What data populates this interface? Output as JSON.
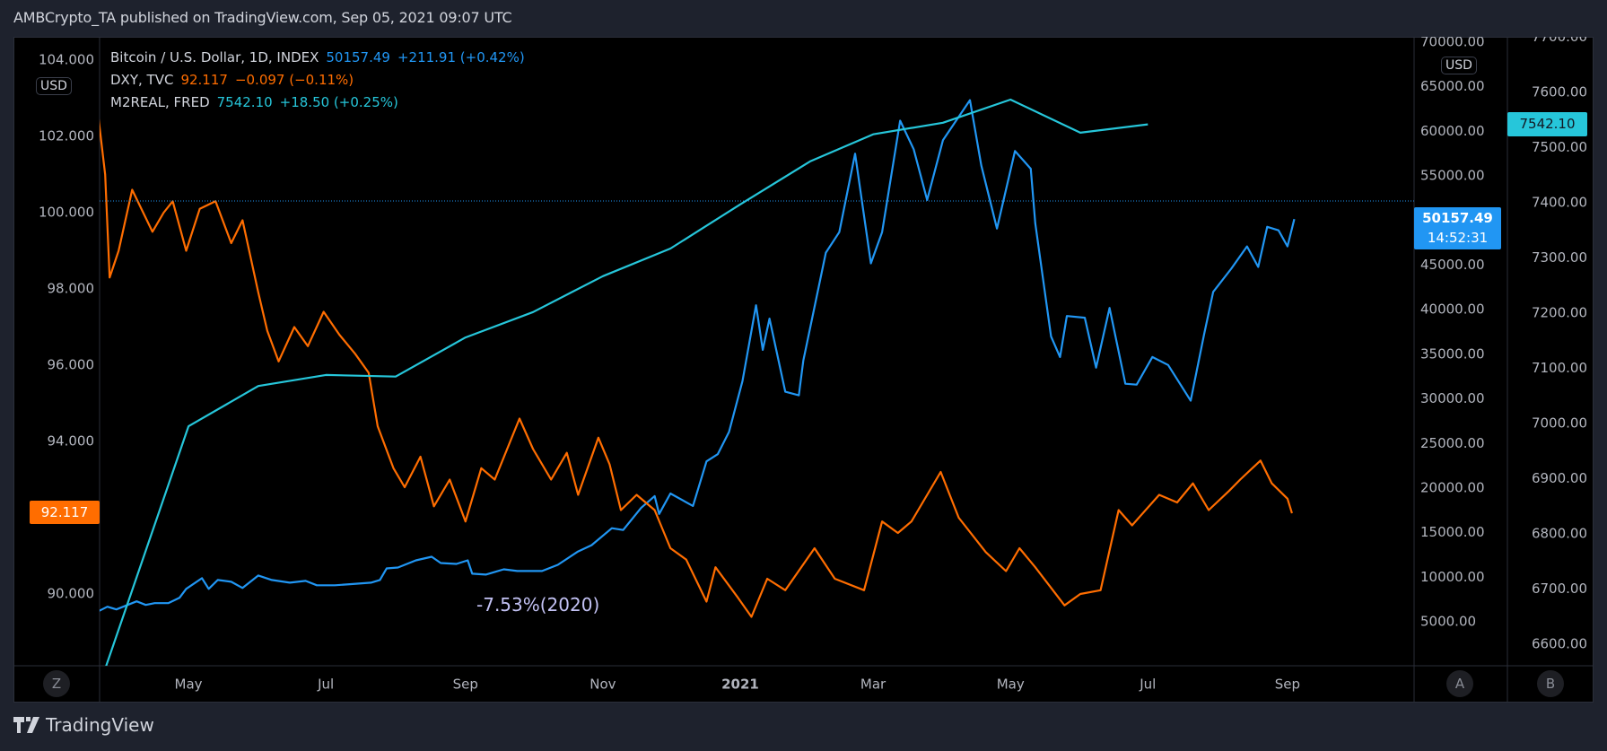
{
  "header": {
    "title": "AMBCrypto_TA published on TradingView.com, Sep 05, 2021 09:07 UTC"
  },
  "legend": [
    {
      "label": "Bitcoin / U.S. Dollar, 1D, INDEX",
      "value": "50157.49",
      "change": "+211.91 (+0.42%)",
      "color": "#2196f3"
    },
    {
      "label": "DXY, TVC",
      "value": "92.117",
      "change": "−0.097 (−0.11%)",
      "color": "#ff6d00"
    },
    {
      "label": "M2REAL, FRED",
      "value": "7542.10",
      "change": "+18.50 (+0.25%)",
      "color": "#26c6da"
    }
  ],
  "badges": {
    "left_currency": "USD",
    "right_currency": "USD",
    "z": "Z",
    "a": "A",
    "b": "B"
  },
  "price_labels": {
    "dxy": "92.117",
    "btc": "50157.49",
    "btc_countdown": "14:52:31",
    "m2": "7542.10"
  },
  "annotation": "-7.53%(2020)",
  "footer": {
    "logo_text": "TradingView"
  },
  "chart_data": {
    "type": "line",
    "title": "",
    "x_ticks": [
      {
        "label": "May",
        "date": "2020-05-01"
      },
      {
        "label": "Jul",
        "date": "2020-07-01"
      },
      {
        "label": "Sep",
        "date": "2020-09-01"
      },
      {
        "label": "Nov",
        "date": "2020-11-01"
      },
      {
        "label": "2021",
        "date": "2021-01-01",
        "bold": true
      },
      {
        "label": "Mar",
        "date": "2021-03-01"
      },
      {
        "label": "May",
        "date": "2021-05-01"
      },
      {
        "label": "Jul",
        "date": "2021-07-01"
      },
      {
        "label": "Sep",
        "date": "2021-09-01"
      }
    ],
    "axes": {
      "left": {
        "series": "DXY",
        "range": [
          87.9,
          104.2
        ],
        "ticks": [
          "104.000",
          "102.000",
          "100.000",
          "98.000",
          "96.000",
          "94.000",
          "90.000"
        ]
      },
      "right_a": {
        "series": "BTC",
        "range": [
          0,
          70000
        ],
        "ticks": [
          "70000.00",
          "65000.00",
          "60000.00",
          "55000.00",
          "45000.00",
          "40000.00",
          "35000.00",
          "30000.00",
          "25000.00",
          "20000.00",
          "15000.00",
          "10000.00",
          "5000.00"
        ]
      },
      "right_b": {
        "series": "M2REAL",
        "range": [
          6560,
          7700
        ],
        "ticks": [
          "7700.00",
          "7600.00",
          "7500.00",
          "7400.00",
          "7300.00",
          "7200.00",
          "7100.00",
          "7000.00",
          "6900.00",
          "6800.00",
          "6700.00",
          "6600.00"
        ]
      }
    },
    "grid": false,
    "series": [
      {
        "name": "Bitcoin / U.S. Dollar",
        "axis": "right_a",
        "color": "#2196f3",
        "points": [
          [
            "2020-03-22",
            6200
          ],
          [
            "2020-03-26",
            6700
          ],
          [
            "2020-03-30",
            6400
          ],
          [
            "2020-04-03",
            6800
          ],
          [
            "2020-04-08",
            7300
          ],
          [
            "2020-04-12",
            6900
          ],
          [
            "2020-04-16",
            7100
          ],
          [
            "2020-04-22",
            7100
          ],
          [
            "2020-04-27",
            7700
          ],
          [
            "2020-04-30",
            8700
          ],
          [
            "2020-05-07",
            9900
          ],
          [
            "2020-05-10",
            8700
          ],
          [
            "2020-05-14",
            9700
          ],
          [
            "2020-05-20",
            9500
          ],
          [
            "2020-05-25",
            8800
          ],
          [
            "2020-06-01",
            10200
          ],
          [
            "2020-06-07",
            9700
          ],
          [
            "2020-06-15",
            9400
          ],
          [
            "2020-06-22",
            9600
          ],
          [
            "2020-06-27",
            9100
          ],
          [
            "2020-07-05",
            9100
          ],
          [
            "2020-07-13",
            9250
          ],
          [
            "2020-07-21",
            9400
          ],
          [
            "2020-07-25",
            9700
          ],
          [
            "2020-07-28",
            11000
          ],
          [
            "2020-08-02",
            11100
          ],
          [
            "2020-08-10",
            11900
          ],
          [
            "2020-08-17",
            12300
          ],
          [
            "2020-08-21",
            11600
          ],
          [
            "2020-08-28",
            11500
          ],
          [
            "2020-09-02",
            11900
          ],
          [
            "2020-09-04",
            10400
          ],
          [
            "2020-09-10",
            10300
          ],
          [
            "2020-09-18",
            10900
          ],
          [
            "2020-09-24",
            10700
          ],
          [
            "2020-10-05",
            10700
          ],
          [
            "2020-10-12",
            11400
          ],
          [
            "2020-10-21",
            12900
          ],
          [
            "2020-10-27",
            13600
          ],
          [
            "2020-11-05",
            15500
          ],
          [
            "2020-11-10",
            15300
          ],
          [
            "2020-11-18",
            17800
          ],
          [
            "2020-11-24",
            19100
          ],
          [
            "2020-11-26",
            17100
          ],
          [
            "2020-12-01",
            19400
          ],
          [
            "2020-12-11",
            18000
          ],
          [
            "2020-12-17",
            23000
          ],
          [
            "2020-12-22",
            23800
          ],
          [
            "2020-12-27",
            26300
          ],
          [
            "2021-01-02",
            32000
          ],
          [
            "2021-01-08",
            40500
          ],
          [
            "2021-01-11",
            35500
          ],
          [
            "2021-01-14",
            39000
          ],
          [
            "2021-01-21",
            30800
          ],
          [
            "2021-01-27",
            30400
          ],
          [
            "2021-01-29",
            34300
          ],
          [
            "2021-02-08",
            46400
          ],
          [
            "2021-02-14",
            48700
          ],
          [
            "2021-02-21",
            57500
          ],
          [
            "2021-02-28",
            45200
          ],
          [
            "2021-03-05",
            48700
          ],
          [
            "2021-03-13",
            61200
          ],
          [
            "2021-03-19",
            58000
          ],
          [
            "2021-03-25",
            52300
          ],
          [
            "2021-04-01",
            59000
          ],
          [
            "2021-04-13",
            63500
          ],
          [
            "2021-04-18",
            56200
          ],
          [
            "2021-04-25",
            49100
          ],
          [
            "2021-05-03",
            57800
          ],
          [
            "2021-05-10",
            55800
          ],
          [
            "2021-05-12",
            49700
          ],
          [
            "2021-05-19",
            37000
          ],
          [
            "2021-05-23",
            34700
          ],
          [
            "2021-05-26",
            39300
          ],
          [
            "2021-06-03",
            39100
          ],
          [
            "2021-06-08",
            33500
          ],
          [
            "2021-06-14",
            40200
          ],
          [
            "2021-06-21",
            31700
          ],
          [
            "2021-06-26",
            31600
          ],
          [
            "2021-07-03",
            34700
          ],
          [
            "2021-07-10",
            33800
          ],
          [
            "2021-07-20",
            29800
          ],
          [
            "2021-07-26",
            37300
          ],
          [
            "2021-07-30",
            42000
          ],
          [
            "2021-08-07",
            44600
          ],
          [
            "2021-08-14",
            47100
          ],
          [
            "2021-08-19",
            44800
          ],
          [
            "2021-08-23",
            49300
          ],
          [
            "2021-08-28",
            48900
          ],
          [
            "2021-09-01",
            47100
          ],
          [
            "2021-09-04",
            50157.49
          ]
        ]
      },
      {
        "name": "DXY",
        "axis": "left",
        "color": "#ff6d00",
        "points": [
          [
            "2020-03-22",
            102.5
          ],
          [
            "2020-03-25",
            101.0
          ],
          [
            "2020-03-27",
            98.3
          ],
          [
            "2020-03-31",
            99.0
          ],
          [
            "2020-04-06",
            100.6
          ],
          [
            "2020-04-15",
            99.5
          ],
          [
            "2020-04-20",
            100.0
          ],
          [
            "2020-04-24",
            100.3
          ],
          [
            "2020-04-30",
            99.0
          ],
          [
            "2020-05-06",
            100.1
          ],
          [
            "2020-05-13",
            100.3
          ],
          [
            "2020-05-20",
            99.2
          ],
          [
            "2020-05-25",
            99.8
          ],
          [
            "2020-06-01",
            97.9
          ],
          [
            "2020-06-05",
            96.9
          ],
          [
            "2020-06-10",
            96.1
          ],
          [
            "2020-06-17",
            97.0
          ],
          [
            "2020-06-23",
            96.5
          ],
          [
            "2020-06-30",
            97.4
          ],
          [
            "2020-07-07",
            96.8
          ],
          [
            "2020-07-14",
            96.3
          ],
          [
            "2020-07-20",
            95.8
          ],
          [
            "2020-07-24",
            94.4
          ],
          [
            "2020-07-31",
            93.3
          ],
          [
            "2020-08-05",
            92.8
          ],
          [
            "2020-08-12",
            93.6
          ],
          [
            "2020-08-18",
            92.3
          ],
          [
            "2020-08-25",
            93.0
          ],
          [
            "2020-09-01",
            91.9
          ],
          [
            "2020-09-08",
            93.3
          ],
          [
            "2020-09-14",
            93.0
          ],
          [
            "2020-09-25",
            94.6
          ],
          [
            "2020-10-01",
            93.8
          ],
          [
            "2020-10-09",
            93.0
          ],
          [
            "2020-10-16",
            93.7
          ],
          [
            "2020-10-21",
            92.6
          ],
          [
            "2020-10-30",
            94.1
          ],
          [
            "2020-11-04",
            93.4
          ],
          [
            "2020-11-09",
            92.2
          ],
          [
            "2020-11-16",
            92.6
          ],
          [
            "2020-11-24",
            92.2
          ],
          [
            "2020-12-01",
            91.2
          ],
          [
            "2020-12-08",
            90.9
          ],
          [
            "2020-12-17",
            89.8
          ],
          [
            "2020-12-21",
            90.7
          ],
          [
            "2020-12-31",
            89.9
          ],
          [
            "2021-01-06",
            89.4
          ],
          [
            "2021-01-13",
            90.4
          ],
          [
            "2021-01-21",
            90.1
          ],
          [
            "2021-02-03",
            91.2
          ],
          [
            "2021-02-12",
            90.4
          ],
          [
            "2021-02-25",
            90.1
          ],
          [
            "2021-03-05",
            91.9
          ],
          [
            "2021-03-12",
            91.6
          ],
          [
            "2021-03-18",
            91.9
          ],
          [
            "2021-03-31",
            93.2
          ],
          [
            "2021-04-08",
            92.0
          ],
          [
            "2021-04-20",
            91.1
          ],
          [
            "2021-04-29",
            90.6
          ],
          [
            "2021-05-05",
            91.2
          ],
          [
            "2021-05-12",
            90.7
          ],
          [
            "2021-05-25",
            89.7
          ],
          [
            "2021-06-01",
            90.0
          ],
          [
            "2021-06-10",
            90.1
          ],
          [
            "2021-06-18",
            92.2
          ],
          [
            "2021-06-24",
            91.8
          ],
          [
            "2021-07-06",
            92.6
          ],
          [
            "2021-07-14",
            92.4
          ],
          [
            "2021-07-21",
            92.9
          ],
          [
            "2021-07-28",
            92.2
          ],
          [
            "2021-08-06",
            92.7
          ],
          [
            "2021-08-11",
            93.0
          ],
          [
            "2021-08-20",
            93.5
          ],
          [
            "2021-08-25",
            92.9
          ],
          [
            "2021-09-01",
            92.5
          ],
          [
            "2021-09-03",
            92.117
          ]
        ]
      },
      {
        "name": "M2REAL",
        "axis": "right_b",
        "color": "#26c6da",
        "points": [
          [
            "2020-03-22",
            6520
          ],
          [
            "2020-05-01",
            6995
          ],
          [
            "2020-06-01",
            7068
          ],
          [
            "2020-07-01",
            7088
          ],
          [
            "2020-08-01",
            7085
          ],
          [
            "2020-09-01",
            7156
          ],
          [
            "2020-10-01",
            7202
          ],
          [
            "2020-11-01",
            7267
          ],
          [
            "2020-12-01",
            7317
          ],
          [
            "2021-01-01",
            7397
          ],
          [
            "2021-02-01",
            7475
          ],
          [
            "2021-03-01",
            7524
          ],
          [
            "2021-04-01",
            7545
          ],
          [
            "2021-05-01",
            7587
          ],
          [
            "2021-06-01",
            7527
          ],
          [
            "2021-07-01",
            7542.1
          ]
        ]
      }
    ]
  }
}
